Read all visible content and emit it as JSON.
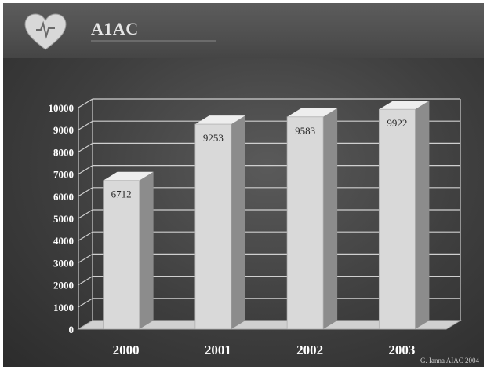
{
  "header": {
    "title": "A1AC"
  },
  "credit": "G. Ianna AIAC 2004",
  "chart_data": {
    "type": "bar",
    "categories": [
      "2000",
      "2001",
      "2002",
      "2003"
    ],
    "values": [
      6712,
      9253,
      9583,
      9922
    ],
    "data_labels": [
      "6712",
      "9253",
      "9583",
      "9922"
    ],
    "ylim": [
      0,
      10000
    ],
    "yticks": [
      0,
      1000,
      2000,
      3000,
      4000,
      5000,
      6000,
      7000,
      8000,
      9000,
      10000
    ],
    "grid": true,
    "legend": "none",
    "style": "3d",
    "colors": {
      "bar_front": "#d9d9d9",
      "bar_side": "#8c8c8c",
      "bar_top": "#eeeeee",
      "grid": "#cfcfcf",
      "floor": "#d0d0d0",
      "text": "#ffffff",
      "data_label": "#2a2a2a"
    }
  }
}
